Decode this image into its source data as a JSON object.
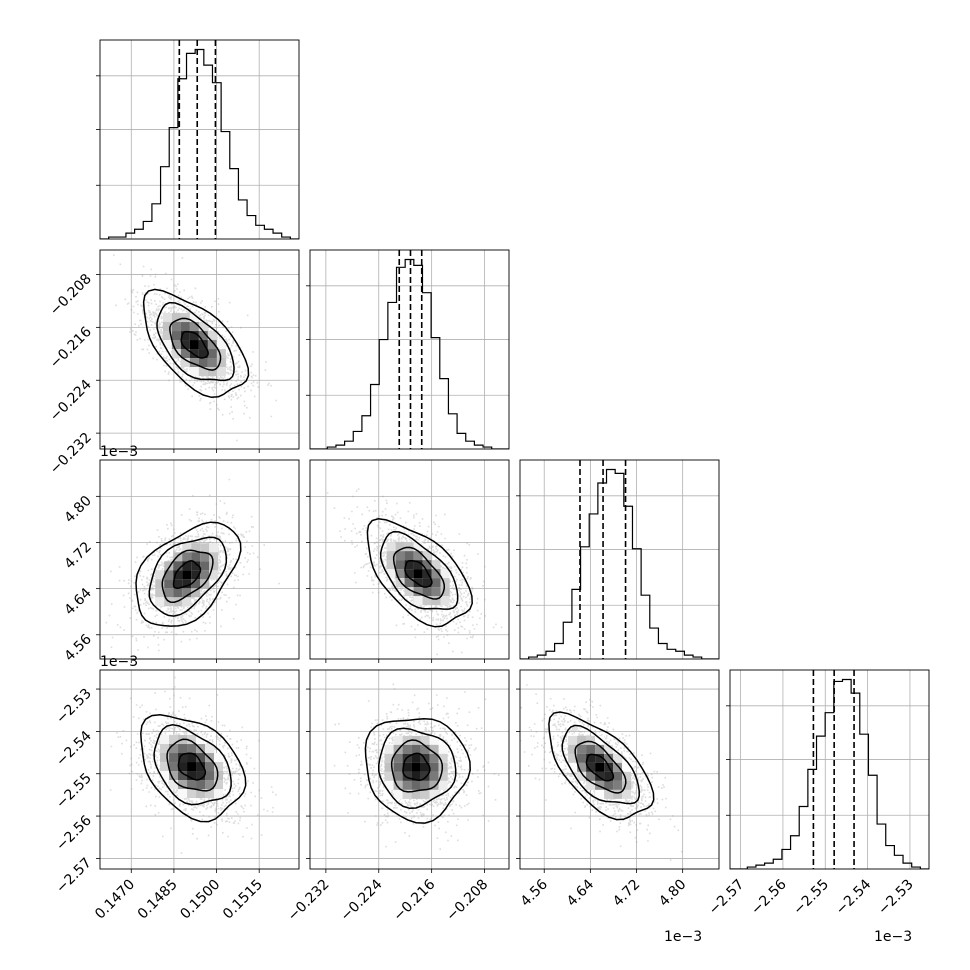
{
  "chart_data": {
    "type": "corner",
    "parameters": [
      {
        "range": [
          0.1459,
          0.1529
        ],
        "ticks": [
          {
            "v": 0.147,
            "label": "0.1470"
          },
          {
            "v": 0.1485,
            "label": "0.1485"
          },
          {
            "v": 0.15,
            "label": "0.1500"
          },
          {
            "v": 0.1515,
            "label": "0.1515"
          }
        ],
        "offset_label": "",
        "quantiles": [
          0.14869,
          0.14932,
          0.14996
        ],
        "lines": [
          0.147,
          0.1485,
          0.15,
          0.1515
        ]
      },
      {
        "range": [
          -0.2344,
          -0.2043
        ],
        "ticks": [
          {
            "v": -0.232,
            "label": "−0.232"
          },
          {
            "v": -0.224,
            "label": "−0.224"
          },
          {
            "v": -0.216,
            "label": "−0.216"
          },
          {
            "v": -0.208,
            "label": "−0.208"
          }
        ],
        "offset_label": "",
        "quantiles": [
          -0.2209,
          -0.2192,
          -0.2175
        ],
        "lines": [
          -0.232,
          -0.224,
          -0.216,
          -0.208
        ]
      },
      {
        "range": [
          4.518,
          4.863
        ],
        "ticks": [
          {
            "v": 4.56,
            "label": "4.56"
          },
          {
            "v": 4.64,
            "label": "4.64"
          },
          {
            "v": 4.72,
            "label": "4.72"
          },
          {
            "v": 4.8,
            "label": "4.80"
          }
        ],
        "offset_label": "1e−3",
        "quantiles": [
          4.622,
          4.662,
          4.701
        ],
        "lines": [
          4.56,
          4.64,
          4.72,
          4.8
        ]
      },
      {
        "range": [
          -2.5725,
          -2.5255
        ],
        "ticks": [
          {
            "v": -2.57,
            "label": "−2.57"
          },
          {
            "v": -2.56,
            "label": "−2.56"
          },
          {
            "v": -2.55,
            "label": "−2.55"
          },
          {
            "v": -2.54,
            "label": "−2.54"
          },
          {
            "v": -2.53,
            "label": "−2.53"
          }
        ],
        "offset_label": "1e−3",
        "quantiles": [
          -2.5528,
          -2.5479,
          -2.5432
        ],
        "lines": [
          -2.57,
          -2.56,
          -2.55,
          -2.54,
          -2.53
        ]
      }
    ],
    "histograms": [
      [
        0,
        1,
        1,
        3,
        5,
        9,
        18,
        37,
        57,
        82,
        95,
        97,
        89,
        80,
        55,
        36,
        20,
        12,
        7,
        5,
        3,
        1,
        0
      ],
      [
        0,
        0,
        1,
        2,
        4,
        9,
        17,
        33,
        56,
        75,
        93,
        97,
        94,
        80,
        57,
        36,
        18,
        8,
        4,
        2,
        1,
        0,
        0
      ],
      [
        0,
        1,
        2,
        4,
        8,
        19,
        36,
        58,
        75,
        91,
        98,
        96,
        79,
        57,
        33,
        16,
        8,
        5,
        4,
        2,
        1,
        0,
        0
      ],
      [
        0,
        0,
        1,
        2,
        3,
        5,
        10,
        17,
        32,
        51,
        68,
        80,
        96,
        97,
        90,
        69,
        48,
        23,
        12,
        7,
        3,
        1,
        0
      ]
    ],
    "correlations": {
      "1-0": -0.57,
      "2-0": 0.45,
      "2-1": -0.55,
      "3-0": -0.35,
      "3-1": -0.05,
      "3-2": -0.6
    },
    "peaks": {
      "1-0": [
        0.14922,
        -0.2186
      ],
      "2-0": [
        0.14895,
        4.664
      ],
      "2-1": [
        -0.21805,
        4.666
      ],
      "3-0": [
        0.14912,
        -2.5483
      ],
      "3-1": [
        -0.21835,
        -2.5485
      ],
      "3-2": [
        4.656,
        -2.5485
      ]
    },
    "grid": true,
    "colors": {
      "line": "#000000",
      "grid": "#b0b0b0",
      "scatter": "#9e9e9e"
    }
  }
}
